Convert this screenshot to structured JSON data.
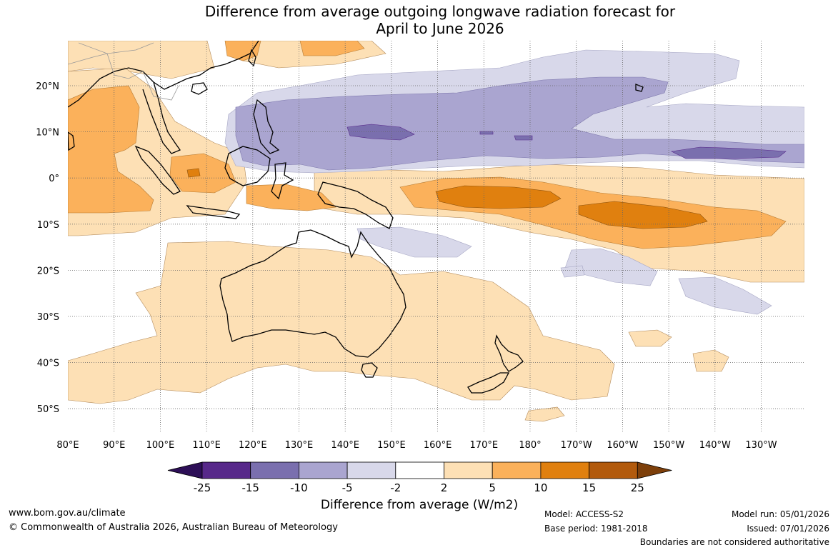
{
  "title": {
    "line1": "Difference from average outgoing longwave radiation forecast for",
    "line2": "April to June 2026"
  },
  "lat_labels": [
    "20°N",
    "10°N",
    "0°",
    "10°S",
    "20°S",
    "30°S",
    "40°S",
    "50°S"
  ],
  "lon_labels": [
    "80°E",
    "90°E",
    "100°E",
    "110°E",
    "120°E",
    "130°E",
    "140°E",
    "150°E",
    "160°E",
    "170°E",
    "180°",
    "170°W",
    "160°W",
    "150°W",
    "140°W",
    "130°W"
  ],
  "colorbar": {
    "label": "Difference from average (W/m2)",
    "ticks": [
      "-25",
      "-15",
      "-10",
      "-5",
      "-2",
      "2",
      "5",
      "10",
      "15",
      "25"
    ],
    "colors": [
      "#2d0f57",
      "#57288a",
      "#7a6fae",
      "#aaa5d0",
      "#d8d8ea",
      "#ffffff",
      "#fde0b5",
      "#fbb15b",
      "#e0800f",
      "#b25a0c",
      "#7d3f0a"
    ]
  },
  "footer": {
    "website": "www.bom.gov.au/climate",
    "copyright": "© Commonwealth of Australia 2026, Australian Bureau of Meteorology"
  },
  "meta": {
    "model": "Model: ACCESS-S2",
    "base_period": "Base period: 1981-2018",
    "model_run": "Model run: 05/01/2026",
    "issued": "Issued: 07/01/2026",
    "disclaimer": "Boundaries are not considered authoritative"
  }
}
